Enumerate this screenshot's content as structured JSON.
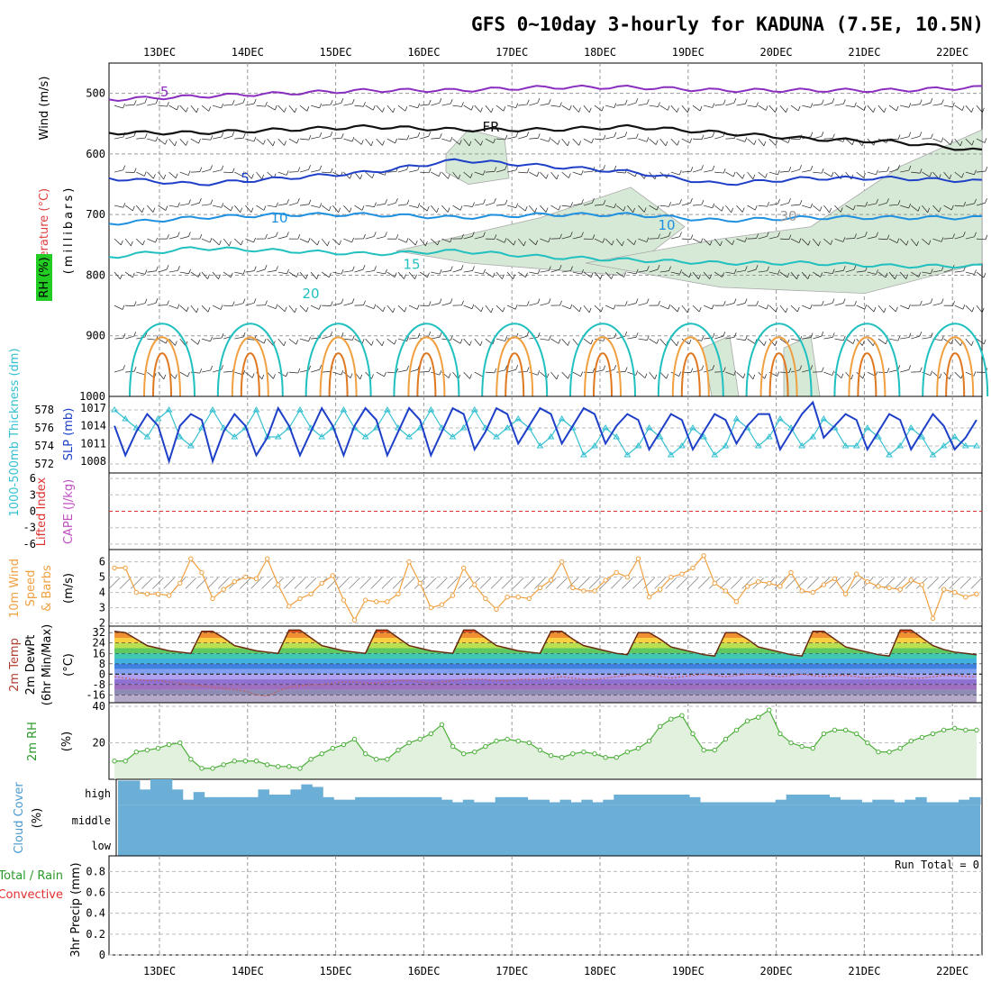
{
  "title": "GFS 0~10day 3-hourly for KADUNA (7.5E, 10.5N)",
  "dates": [
    "13DEC",
    "14DEC",
    "15DEC",
    "16DEC",
    "17DEC",
    "18DEC",
    "19DEC",
    "20DEC",
    "21DEC",
    "22DEC"
  ],
  "colors": {
    "temp_line": "#1e3fc8",
    "thickness_line": "#33c0d0",
    "wind": "#f0a040",
    "rh": "#4caf3a",
    "cloud": "#6baed6",
    "lifted": "#e03030",
    "cape": "#c050c0"
  },
  "chart_data": [
    {
      "type": "contour",
      "panel": "upper-air",
      "ylabel_left": [
        "Temperature (°C)",
        "Wind (m/s)",
        "RH (%)"
      ],
      "ylabel_axis": "(millibars)",
      "y_ticks": [
        500,
        600,
        700,
        800,
        900,
        1000
      ],
      "ylim": [
        450,
        1000
      ],
      "isotherm_labels": [
        "-5",
        "FR",
        "5",
        "10",
        "15",
        "20",
        "10",
        "30"
      ],
      "isotherms": [
        {
          "label": "-5",
          "levels_mb": [
            510,
            505,
            500,
            495,
            495,
            490,
            490,
            495,
            495,
            495,
            490
          ]
        },
        {
          "label": "FR",
          "levels_mb": [
            565,
            565,
            560,
            555,
            560,
            560,
            555,
            565,
            575,
            580,
            595
          ]
        },
        {
          "label": "5",
          "levels_mb": [
            640,
            650,
            640,
            630,
            610,
            620,
            630,
            650,
            640,
            640,
            645
          ]
        },
        {
          "label": "10",
          "levels_mb": [
            715,
            705,
            700,
            700,
            705,
            700,
            700,
            710,
            705,
            705,
            705
          ]
        },
        {
          "label": "15",
          "levels_mb": [
            770,
            755,
            760,
            765,
            760,
            770,
            775,
            780,
            780,
            785,
            785
          ]
        }
      ]
    },
    {
      "type": "line",
      "panel": "thickness-slp",
      "ylabel_left": "1000-500mb Thickness (dm)",
      "ylabel_right": "SLP (mb)",
      "y_ticks_thickness": [
        572,
        574,
        576,
        578
      ],
      "y_ticks_slp": [
        1008,
        1011,
        1014,
        1017
      ],
      "series": [
        {
          "name": "SLP",
          "unit": "mb",
          "values": [
            1014,
            1009,
            1013,
            1016,
            1014,
            1008,
            1014,
            1016,
            1015,
            1008,
            1013,
            1016,
            1014,
            1009,
            1012,
            1017,
            1014,
            1009,
            1013,
            1017,
            1014,
            1009,
            1014,
            1017,
            1015,
            1009,
            1013,
            1017,
            1015,
            1009,
            1013,
            1017,
            1016,
            1010,
            1013,
            1017,
            1016,
            1011,
            1014,
            1017,
            1016,
            1011,
            1014,
            1017,
            1016,
            1011,
            1014,
            1016,
            1015,
            1010,
            1013,
            1016,
            1015,
            1010,
            1013,
            1016,
            1015,
            1011,
            1014,
            1016,
            1016,
            1010,
            1013,
            1016,
            1018,
            1012,
            1014,
            1016,
            1015,
            1010,
            1013,
            1016,
            1015,
            1010,
            1013,
            1016,
            1014,
            1010,
            1012,
            1015
          ]
        },
        {
          "name": "Thickness",
          "unit": "dm",
          "values": [
            578,
            577,
            576,
            575,
            577,
            578,
            575,
            574,
            576,
            578,
            576,
            575,
            576,
            578,
            575,
            575,
            576,
            578,
            576,
            575,
            576,
            578,
            576,
            575,
            576,
            578,
            576,
            575,
            576,
            578,
            576,
            575,
            576,
            578,
            576,
            575,
            576,
            577,
            576,
            574,
            575,
            577,
            576,
            573,
            574,
            576,
            575,
            573,
            574,
            576,
            575,
            573,
            574,
            576,
            575,
            573,
            574,
            577,
            576,
            574,
            575,
            577,
            576,
            574,
            575,
            577,
            576,
            574,
            574,
            576,
            575,
            573,
            574,
            576,
            575,
            573,
            574,
            575,
            574,
            574
          ]
        }
      ]
    },
    {
      "type": "line",
      "panel": "stability",
      "ylabel_left": "Lifted Index",
      "ylabel_right": "CAPE (J/kg)",
      "y_ticks": [
        6,
        3,
        0,
        -3,
        -6
      ],
      "y_tick_labels": [
        "-6",
        "-3",
        "0",
        "3",
        "6"
      ],
      "reference_line": 0,
      "series": []
    },
    {
      "type": "line",
      "panel": "10m-wind",
      "ylabel_left": [
        "10m Wind",
        "Speed",
        "& Barbs"
      ],
      "yunit": "(m/s)",
      "y_ticks": [
        2,
        3,
        4,
        5,
        6
      ],
      "series": [
        {
          "name": "10m Wind Speed",
          "values": [
            5.6,
            5.6,
            4.0,
            3.9,
            3.9,
            3.8,
            4.6,
            6.2,
            5.3,
            3.6,
            4.2,
            4.7,
            5.0,
            4.9,
            6.2,
            4.5,
            3.1,
            3.6,
            3.9,
            4.6,
            5.1,
            3.5,
            2.2,
            3.5,
            3.4,
            3.4,
            3.9,
            6.0,
            4.6,
            3.0,
            3.2,
            3.8,
            5.6,
            4.5,
            3.6,
            2.9,
            3.7,
            3.7,
            3.6,
            4.3,
            4.8,
            6.0,
            4.3,
            4.1,
            4.1,
            4.8,
            5.3,
            5.0,
            6.2,
            3.7,
            4.2,
            5.0,
            5.2,
            5.6,
            6.4,
            4.6,
            4.1,
            3.4,
            4.4,
            4.7,
            4.6,
            4.4,
            5.3,
            4.1,
            4.0,
            4.5,
            4.9,
            3.9,
            5.2,
            4.7,
            4.4,
            4.3,
            4.2,
            4.8,
            4.5,
            2.3,
            4.2,
            4.0,
            3.7,
            3.9
          ]
        }
      ]
    },
    {
      "type": "area",
      "panel": "2m-temp",
      "ylabel_left": [
        "2m Temp",
        "2m DewPt",
        "(6hr Min/Max)"
      ],
      "yunit": "(°C)",
      "y_ticks": [
        -16,
        -8,
        0,
        8,
        16,
        24,
        32
      ],
      "series": [
        {
          "name": "2m Temp",
          "values": [
            33,
            32,
            27,
            22,
            20,
            18,
            17,
            16,
            33,
            33,
            28,
            22,
            20,
            18,
            17,
            16,
            34,
            34,
            28,
            22,
            20,
            18,
            17,
            16,
            34,
            34,
            28,
            22,
            20,
            18,
            17,
            16,
            34,
            34,
            28,
            22,
            20,
            18,
            17,
            16,
            33,
            33,
            27,
            22,
            20,
            18,
            16,
            15,
            32,
            32,
            27,
            21,
            19,
            17,
            15,
            14,
            32,
            32,
            27,
            21,
            19,
            17,
            15,
            14,
            33,
            33,
            27,
            21,
            19,
            17,
            15,
            14,
            34,
            34,
            28,
            22,
            19,
            17,
            16,
            15
          ]
        },
        {
          "name": "2m DewPt",
          "values": [
            -2,
            -3,
            -4,
            -5,
            -5,
            -6,
            -7,
            -8,
            -9,
            -10,
            -11,
            -12,
            -13,
            -16,
            -17,
            -13,
            -10,
            -9,
            -8,
            -8,
            -7,
            -6,
            -6,
            -7,
            -7,
            -6,
            -5,
            -5,
            -6,
            -7,
            -6,
            -5,
            -4,
            -4,
            -4,
            -5,
            -5,
            -4,
            -4,
            -4,
            -3,
            -2,
            -3,
            -4,
            -4,
            -3,
            -2,
            -1,
            0,
            -1,
            -2,
            -3,
            -2,
            -1,
            0,
            -1,
            -2,
            -1,
            0,
            0,
            -1,
            -2,
            -1,
            0,
            -1,
            -2,
            -1,
            -1,
            -2,
            -3,
            -2,
            -1,
            -2,
            -3,
            -3,
            -2,
            -1,
            -1,
            -2,
            -2
          ]
        }
      ]
    },
    {
      "type": "area",
      "panel": "2m-rh",
      "ylabel_left": "2m RH",
      "yunit": "(%)",
      "y_ticks": [
        20,
        40
      ],
      "series": [
        {
          "name": "2m RH",
          "values": [
            10,
            10,
            15,
            16,
            17,
            19,
            20,
            11,
            6,
            6,
            8,
            10,
            10,
            10,
            8,
            7,
            7,
            6,
            11,
            14,
            17,
            19,
            22,
            14,
            11,
            11,
            16,
            20,
            22,
            25,
            30,
            18,
            14,
            15,
            18,
            21,
            22,
            21,
            20,
            16,
            13,
            12,
            14,
            15,
            14,
            12,
            12,
            15,
            17,
            21,
            29,
            33,
            35,
            25,
            16,
            16,
            22,
            27,
            32,
            34,
            38,
            25,
            20,
            18,
            17,
            25,
            27,
            27,
            25,
            20,
            15,
            15,
            17,
            21,
            23,
            25,
            27,
            28,
            27,
            27
          ]
        }
      ]
    },
    {
      "type": "bar",
      "panel": "cloud-cover",
      "ylabel_left": "Cloud Cover",
      "yunit": "(%)",
      "row_labels": [
        "high",
        "middle",
        "low"
      ],
      "series": [
        {
          "name": "high",
          "values": [
            95,
            95,
            60,
            100,
            100,
            60,
            20,
            50,
            30,
            30,
            30,
            30,
            30,
            60,
            40,
            40,
            60,
            80,
            70,
            30,
            20,
            20,
            30,
            30,
            30,
            30,
            30,
            30,
            30,
            30,
            20,
            10,
            20,
            10,
            10,
            30,
            30,
            30,
            20,
            20,
            10,
            20,
            10,
            20,
            10,
            20,
            40,
            40,
            40,
            40,
            40,
            40,
            40,
            30,
            10,
            10,
            10,
            10,
            10,
            10,
            10,
            20,
            40,
            40,
            40,
            40,
            30,
            20,
            20,
            10,
            20,
            20,
            10,
            20,
            30,
            10,
            10,
            10,
            20,
            30
          ]
        },
        {
          "name": "middle",
          "values": [
            0
          ]
        },
        {
          "name": "low",
          "values": [
            0
          ]
        }
      ]
    },
    {
      "type": "bar",
      "panel": "precip",
      "ylabel_left": [
        "Total / Rain",
        "Convective",
        "3hr Precip (mm)"
      ],
      "y_ticks": [
        0,
        0.2,
        0.4,
        0.6,
        0.8
      ],
      "annotation": "Run Total = 0",
      "series": [
        {
          "name": "3hr Precip",
          "values": [
            0
          ]
        }
      ]
    }
  ]
}
